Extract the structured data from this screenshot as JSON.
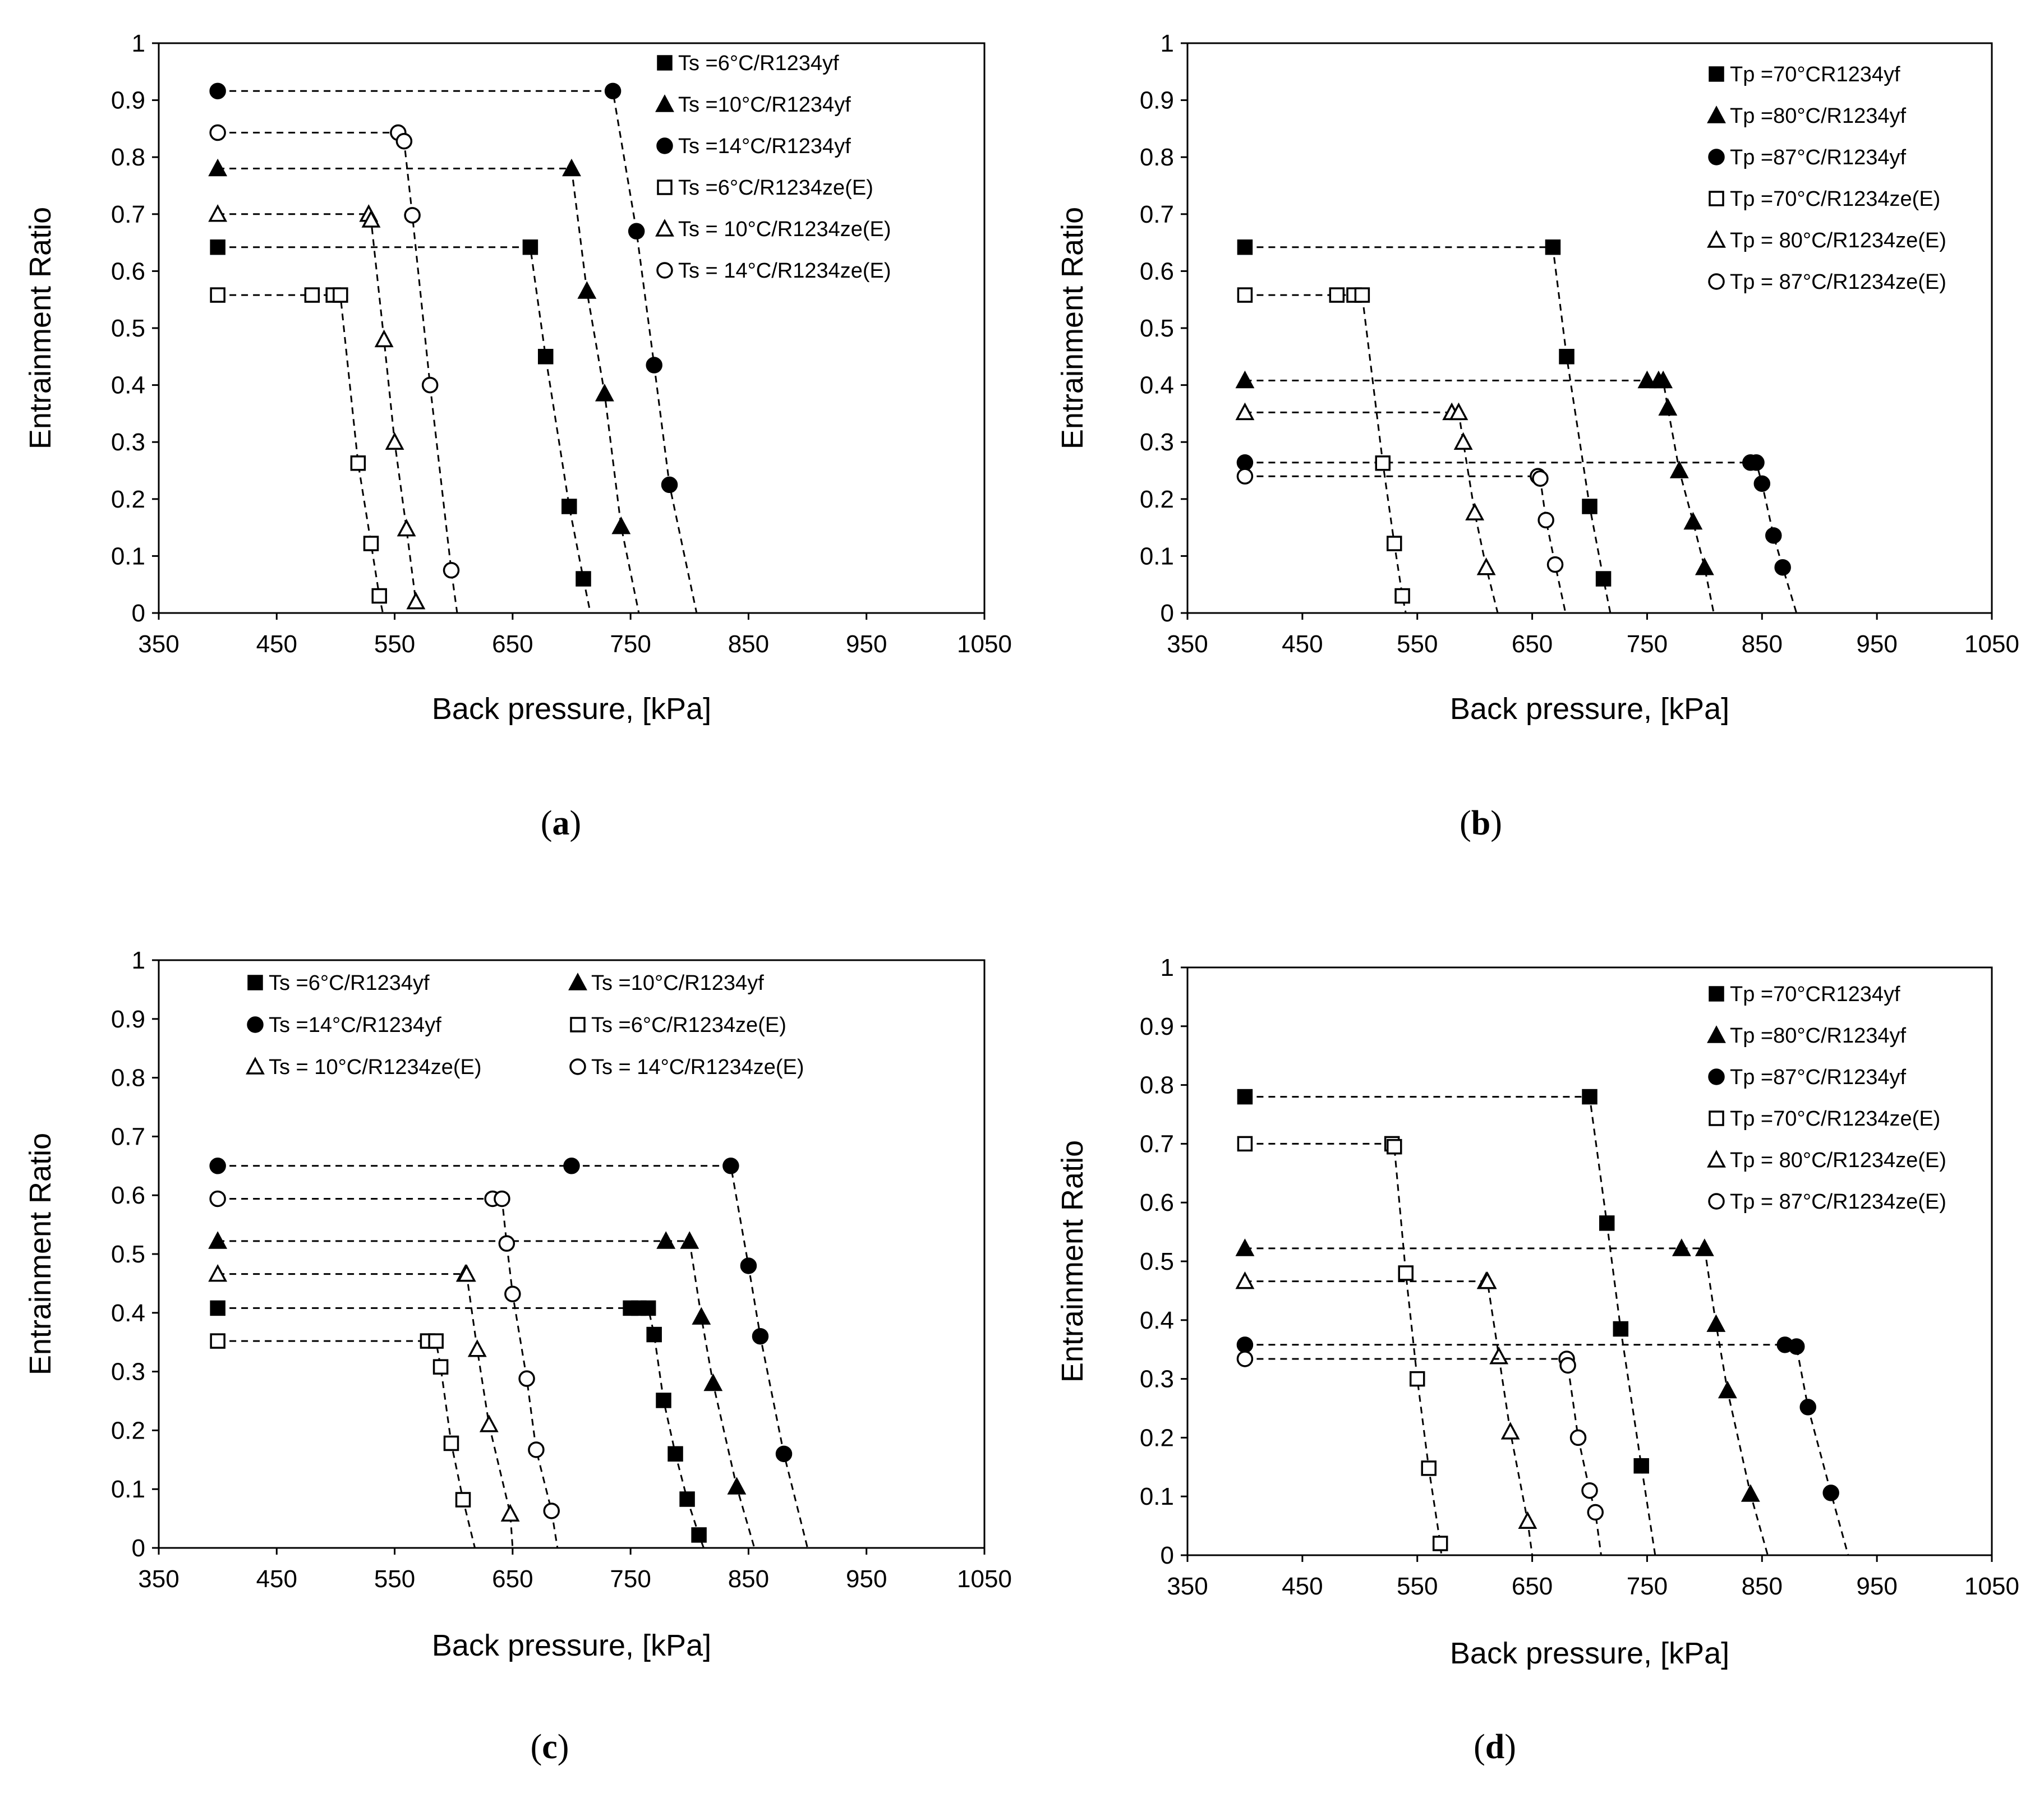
{
  "chart_data": [
    {
      "type": "line",
      "panel_label": "a",
      "xlabel": "Back pressure, [kPa]",
      "ylabel": "Entrainment Ratio",
      "xlim": [
        350,
        1050
      ],
      "ylim": [
        0,
        1
      ],
      "xticks": [
        "350",
        "450",
        "550",
        "650",
        "750",
        "850",
        "950",
        "1050"
      ],
      "yticks": [
        "0",
        "0.1",
        "0.2",
        "0.3",
        "0.4",
        "0.5",
        "0.6",
        "0.7",
        "0.8",
        "0.9",
        "1"
      ],
      "legend_layout": "single-column",
      "series": [
        {
          "name": "Ts =6°C/R1234yf",
          "marker": "square-filled",
          "x": [
            400,
            665,
            678,
            698,
            710
          ],
          "y": [
            0.642,
            0.642,
            0.45,
            0.187,
            0.06
          ],
          "end_x": 716
        },
        {
          "name": "Ts =10°C/R1234yf",
          "marker": "triangle-filled",
          "x": [
            400,
            700,
            713,
            728,
            742
          ],
          "y": [
            0.78,
            0.78,
            0.565,
            0.385,
            0.152
          ],
          "end_x": 757
        },
        {
          "name": "Ts =14°C/R1234yf",
          "marker": "circle-filled",
          "x": [
            400,
            735,
            755,
            770,
            783
          ],
          "y": [
            0.916,
            0.916,
            0.67,
            0.435,
            0.225
          ],
          "end_x": 806
        },
        {
          "name": "Ts =6°C/R1234ze(E)",
          "marker": "square-open",
          "x": [
            400,
            480,
            498,
            504,
            519,
            530,
            537
          ],
          "y": [
            0.558,
            0.558,
            0.558,
            0.558,
            0.263,
            0.122,
            0.03
          ],
          "end_x": 540
        },
        {
          "name": "Ts = 10°C/R1234ze(E)",
          "marker": "triangle-open",
          "x": [
            400,
            528,
            530,
            541,
            550,
            560,
            568
          ],
          "y": [
            0.7,
            0.7,
            0.69,
            0.48,
            0.3,
            0.148,
            0.02
          ],
          "end_x": 571
        },
        {
          "name": "Ts = 14°C/R1234ze(E)",
          "marker": "circle-open",
          "x": [
            400,
            553,
            558,
            565,
            580,
            598
          ],
          "y": [
            0.843,
            0.843,
            0.828,
            0.698,
            0.4,
            0.075
          ],
          "end_x": 603
        }
      ]
    },
    {
      "type": "line",
      "panel_label": "b",
      "xlabel": "Back pressure, [kPa]",
      "ylabel": "Entrainment Ratio",
      "xlim": [
        350,
        1050
      ],
      "ylim": [
        0,
        1
      ],
      "xticks": [
        "350",
        "450",
        "550",
        "650",
        "750",
        "850",
        "950",
        "1050"
      ],
      "yticks": [
        "0",
        "0.1",
        "0.2",
        "0.3",
        "0.4",
        "0.5",
        "0.6",
        "0.7",
        "0.8",
        "0.9",
        "1"
      ],
      "legend_layout": "single-column",
      "series": [
        {
          "name": "Tp =70°CR1234yf",
          "marker": "square-filled",
          "x": [
            400,
            668,
            680,
            700,
            712
          ],
          "y": [
            0.642,
            0.642,
            0.45,
            0.187,
            0.06
          ],
          "end_x": 718
        },
        {
          "name": "Tp =80°C/R1234yf",
          "marker": "triangle-filled",
          "x": [
            400,
            750,
            760,
            764,
            768,
            778,
            790,
            800
          ],
          "y": [
            0.408,
            0.408,
            0.408,
            0.408,
            0.36,
            0.25,
            0.16,
            0.08
          ],
          "end_x": 808
        },
        {
          "name": "Tp =87°C/R1234yf",
          "marker": "circle-filled",
          "x": [
            400,
            840,
            845,
            850,
            860,
            868
          ],
          "y": [
            0.264,
            0.264,
            0.264,
            0.227,
            0.136,
            0.08
          ],
          "end_x": 880
        },
        {
          "name": "Tp =70°C/R1234ze(E)",
          "marker": "square-open",
          "x": [
            400,
            480,
            495,
            502,
            520,
            530,
            537
          ],
          "y": [
            0.558,
            0.558,
            0.558,
            0.558,
            0.263,
            0.122,
            0.03
          ],
          "end_x": 540
        },
        {
          "name": "Tp = 80°C/R1234ze(E)",
          "marker": "triangle-open",
          "x": [
            400,
            580,
            586,
            590,
            600,
            610
          ],
          "y": [
            0.352,
            0.352,
            0.352,
            0.3,
            0.176,
            0.08
          ],
          "end_x": 620
        },
        {
          "name": "Tp = 87°C/R1234ze(E)",
          "marker": "circle-open",
          "x": [
            400,
            655,
            657,
            662,
            670
          ],
          "y": [
            0.24,
            0.24,
            0.236,
            0.163,
            0.085
          ],
          "end_x": 679
        }
      ]
    },
    {
      "type": "line",
      "panel_label": "c",
      "xlabel": "Back pressure, [kPa]",
      "ylabel": "Entrainment Ratio",
      "xlim": [
        350,
        1050
      ],
      "ylim": [
        0,
        1
      ],
      "xticks": [
        "350",
        "450",
        "550",
        "650",
        "750",
        "850",
        "950",
        "1050"
      ],
      "yticks": [
        "0",
        "0.1",
        "0.2",
        "0.3",
        "0.4",
        "0.5",
        "0.6",
        "0.7",
        "0.8",
        "0.9",
        "1"
      ],
      "legend_layout": "two-column",
      "series": [
        {
          "name": "Ts =6°C/R1234yf",
          "marker": "square-filled",
          "x": [
            400,
            750,
            757,
            765,
            770,
            778,
            788,
            798,
            808
          ],
          "y": [
            0.408,
            0.408,
            0.408,
            0.408,
            0.363,
            0.251,
            0.16,
            0.083,
            0.022
          ],
          "end_x": 812
        },
        {
          "name": "Ts =10°C/R1234yf",
          "marker": "triangle-filled",
          "x": [
            400,
            780,
            800,
            810,
            820,
            840
          ],
          "y": [
            0.522,
            0.522,
            0.522,
            0.393,
            0.28,
            0.104
          ],
          "end_x": 855
        },
        {
          "name": "Ts =14°C/R1234yf",
          "marker": "circle-filled",
          "x": [
            400,
            700,
            835,
            850,
            860,
            880
          ],
          "y": [
            0.65,
            0.65,
            0.65,
            0.48,
            0.36,
            0.16
          ],
          "end_x": 900
        },
        {
          "name": "Ts =6°C/R1234ze(E)",
          "marker": "square-open",
          "x": [
            400,
            578,
            585,
            589,
            598,
            608
          ],
          "y": [
            0.352,
            0.352,
            0.352,
            0.308,
            0.178,
            0.082
          ],
          "end_x": 618
        },
        {
          "name": "Ts = 10°C/R1234ze(E)",
          "marker": "triangle-open",
          "x": [
            400,
            610,
            611,
            620,
            630,
            648
          ],
          "y": [
            0.466,
            0.466,
            0.466,
            0.338,
            0.21,
            0.058
          ],
          "end_x": 650
        },
        {
          "name": "Ts = 14°C/R1234ze(E)",
          "marker": "circle-open",
          "x": [
            400,
            633,
            641,
            645,
            650,
            662,
            670,
            683
          ],
          "y": [
            0.594,
            0.594,
            0.594,
            0.518,
            0.432,
            0.288,
            0.167,
            0.063
          ],
          "end_x": 688
        }
      ]
    },
    {
      "type": "line",
      "panel_label": "d",
      "xlabel": "Back pressure, [kPa]",
      "ylabel": "Entrainment Ratio",
      "xlim": [
        350,
        1050
      ],
      "ylim": [
        0,
        1
      ],
      "xticks": [
        "350",
        "450",
        "550",
        "650",
        "750",
        "850",
        "950",
        "1050"
      ],
      "yticks": [
        "0",
        "0.1",
        "0.2",
        "0.3",
        "0.4",
        "0.5",
        "0.6",
        "0.7",
        "0.8",
        "0.9",
        "1"
      ],
      "legend_layout": "single-column",
      "series": [
        {
          "name": "Tp =70°CR1234yf",
          "marker": "square-filled",
          "x": [
            400,
            700,
            715,
            727,
            745
          ],
          "y": [
            0.78,
            0.78,
            0.565,
            0.385,
            0.152
          ],
          "end_x": 757
        },
        {
          "name": "Tp =80°C/R1234yf",
          "marker": "triangle-filled",
          "x": [
            400,
            780,
            800,
            810,
            820,
            840
          ],
          "y": [
            0.522,
            0.522,
            0.522,
            0.393,
            0.28,
            0.104
          ],
          "end_x": 855
        },
        {
          "name": "Tp =87°C/R1234yf",
          "marker": "circle-filled",
          "x": [
            400,
            870,
            880,
            890,
            910
          ],
          "y": [
            0.358,
            0.358,
            0.355,
            0.252,
            0.106
          ],
          "end_x": 925
        },
        {
          "name": "Tp =70°C/R1234ze(E)",
          "marker": "square-open",
          "x": [
            400,
            528,
            530,
            540,
            550,
            560,
            570
          ],
          "y": [
            0.7,
            0.7,
            0.695,
            0.48,
            0.3,
            0.148,
            0.02
          ],
          "end_x": 571
        },
        {
          "name": "Tp = 80°C/R1234ze(E)",
          "marker": "triangle-open",
          "x": [
            400,
            610,
            611,
            621,
            631,
            646
          ],
          "y": [
            0.466,
            0.466,
            0.466,
            0.338,
            0.21,
            0.058
          ],
          "end_x": 650
        },
        {
          "name": "Tp = 87°C/R1234ze(E)",
          "marker": "circle-open",
          "x": [
            400,
            680,
            681,
            690,
            700,
            705
          ],
          "y": [
            0.334,
            0.334,
            0.323,
            0.2,
            0.11,
            0.073
          ],
          "end_x": 710
        }
      ]
    }
  ]
}
